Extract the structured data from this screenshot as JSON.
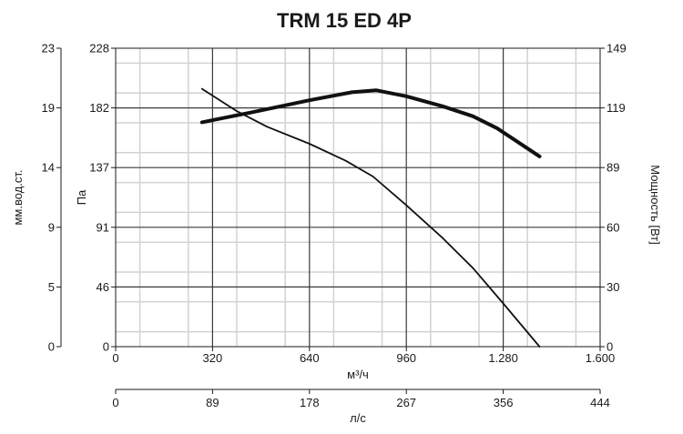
{
  "chart_data": {
    "type": "line",
    "title": "TRM 15 ED 4P",
    "xlabel": "м³/ч",
    "xlabel2": "л/с",
    "ylabel_left_outer": "мм.вод.ст.",
    "ylabel_left": "Па",
    "ylabel_right": "Мощность [Вт]",
    "x_ticks": [
      "0",
      "320",
      "640",
      "960",
      "1.280",
      "1.600"
    ],
    "x2_ticks": [
      "0",
      "89",
      "178",
      "267",
      "356",
      "444"
    ],
    "y_ticks_pa": [
      "0",
      "46",
      "91",
      "137",
      "182",
      "228"
    ],
    "y_ticks_mm": [
      "0",
      "5",
      "9",
      "14",
      "19",
      "23"
    ],
    "y_ticks_w": [
      "0",
      "30",
      "60",
      "89",
      "119",
      "149"
    ],
    "xlim": [
      0,
      1600
    ],
    "ylim_pa": [
      0,
      228
    ],
    "ylim_w": [
      0,
      149
    ],
    "grid": true,
    "series": [
      {
        "axis": "left",
        "line": "thin",
        "x": [
          285,
          400,
          500,
          640,
          760,
          850,
          960,
          1080,
          1180,
          1280,
          1400
        ],
        "y": [
          197,
          180,
          168,
          155,
          142,
          130,
          108,
          83,
          60,
          33,
          0
        ]
      },
      {
        "axis": "right",
        "line": "thick",
        "x": [
          285,
          450,
          640,
          780,
          860,
          960,
          1080,
          1180,
          1260,
          1400
        ],
        "y": [
          112,
          117,
          123,
          127,
          128,
          125,
          120,
          115,
          109,
          95
        ]
      }
    ]
  }
}
